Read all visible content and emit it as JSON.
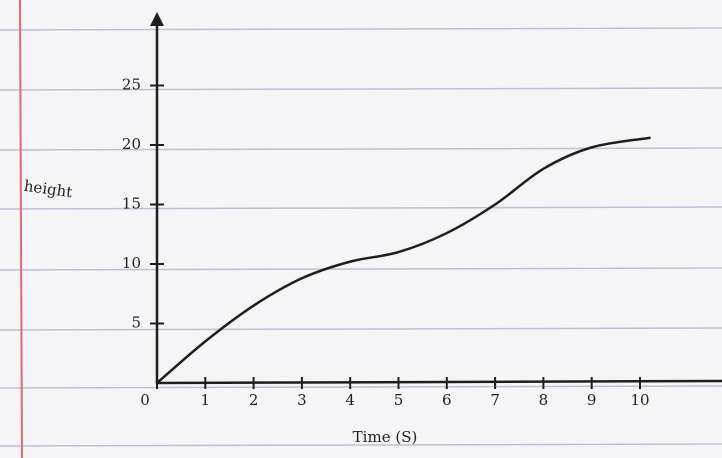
{
  "chart_data": {
    "type": "line",
    "x_label": "Time (S)",
    "y_label": "height",
    "x": [
      0,
      1,
      2,
      3,
      4,
      5,
      6,
      7,
      8,
      9,
      10.2
    ],
    "series": [
      {
        "color": "#1e1e1e",
        "values": [
          0,
          3.5,
          6.5,
          8.8,
          10.2,
          11,
          12.6,
          15,
          18,
          19.8,
          20.6
        ]
      }
    ],
    "xlim": [
      0,
      11.5
    ],
    "ylim": [
      0,
      30
    ],
    "xticks": [
      0,
      1,
      2,
      3,
      4,
      5,
      6,
      7,
      8,
      9,
      10
    ],
    "yticks": [
      5,
      10,
      15,
      20,
      25
    ]
  }
}
